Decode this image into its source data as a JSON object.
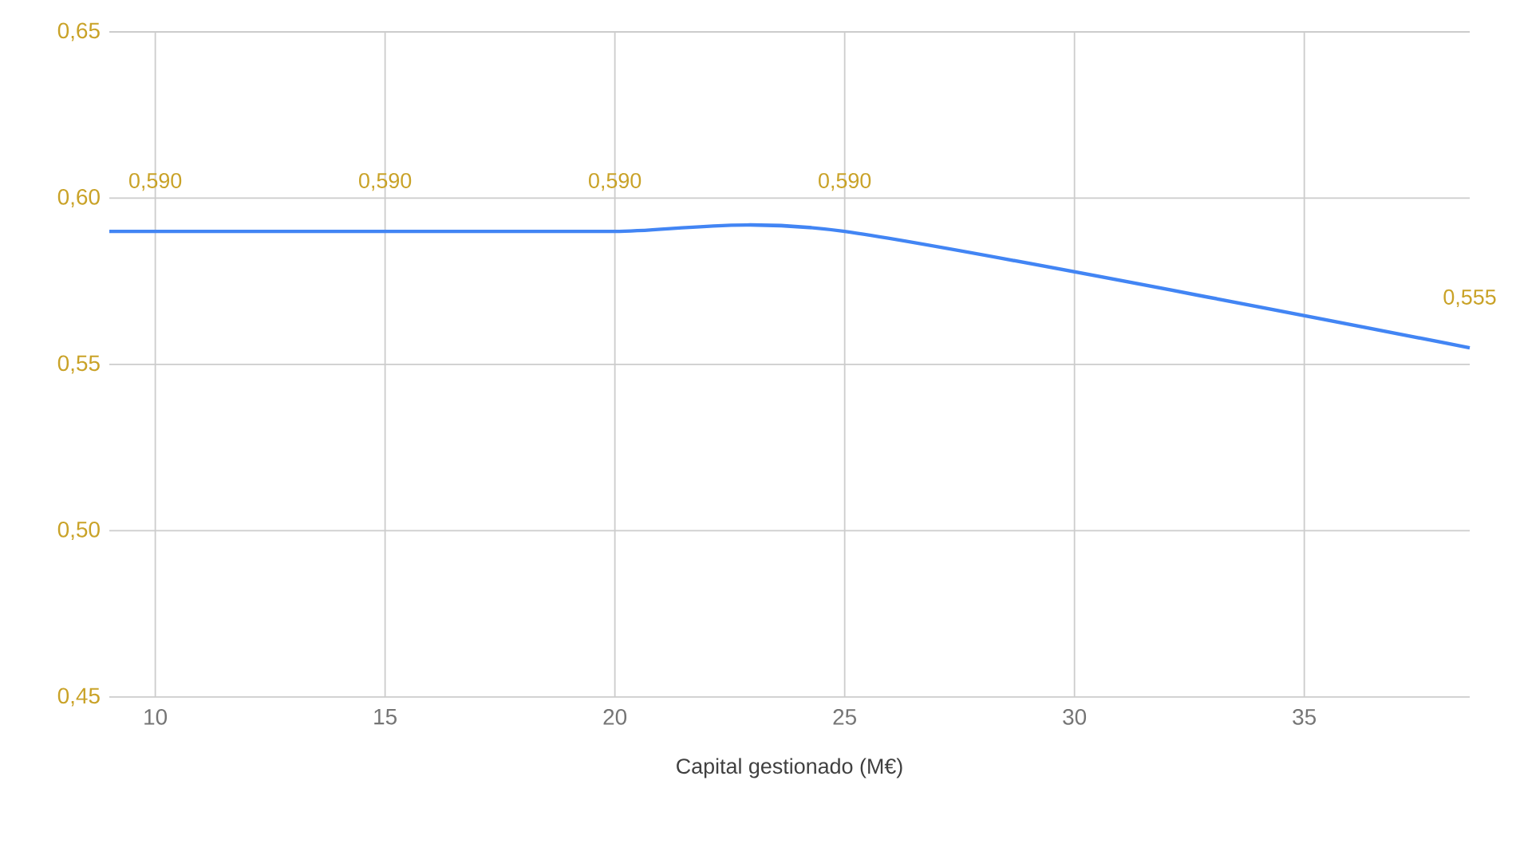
{
  "chart_data": {
    "type": "line",
    "xlabel": "Capital gestionado (M€)",
    "x": [
      9,
      10,
      15,
      20,
      25,
      38.6
    ],
    "values": [
      0.59,
      0.59,
      0.59,
      0.59,
      0.59,
      0.555
    ],
    "value_labels": [
      null,
      "0,590",
      "0,590",
      "0,590",
      "0,590",
      "0,555"
    ],
    "color": "#4285f4",
    "xlim": [
      9,
      38.6
    ],
    "xticks": [
      10,
      15,
      20,
      25,
      30,
      35
    ],
    "ylim": [
      0.45,
      0.65
    ],
    "yticks": [
      {
        "value": 0.45,
        "label": "0,45"
      },
      {
        "value": 0.5,
        "label": "0,50"
      },
      {
        "value": 0.55,
        "label": "0,55"
      },
      {
        "value": 0.6,
        "label": "0,60"
      },
      {
        "value": 0.65,
        "label": "0,65"
      }
    ],
    "grid": true
  }
}
